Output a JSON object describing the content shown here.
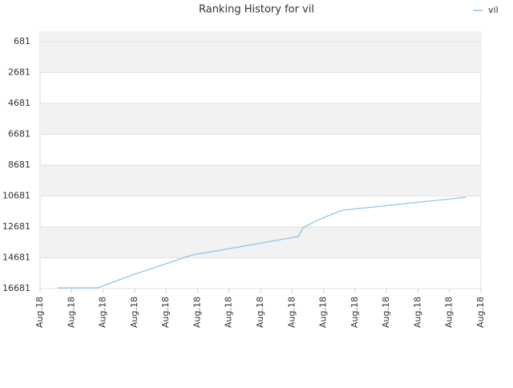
{
  "chart_data": {
    "type": "line",
    "title": "Ranking History for vil",
    "x": [
      0.56,
      1.83,
      2.93,
      4.07,
      4.84,
      5.6,
      8.2,
      8.35,
      8.91,
      9.54,
      9.67,
      13.54
    ],
    "series": [
      {
        "name": "vil",
        "color": "#90c4ec",
        "values": [
          16630,
          16630,
          15798,
          15019,
          14499,
          14240,
          13304,
          12733,
          12161,
          11642,
          11590,
          10758
        ]
      }
    ],
    "xlim": [
      0,
      14
    ],
    "xticks": [
      {
        "value": 0,
        "label": "Aug.18"
      },
      {
        "value": 1,
        "label": "Aug.18"
      },
      {
        "value": 2,
        "label": "Aug.18"
      },
      {
        "value": 3,
        "label": "Aug.18"
      },
      {
        "value": 4,
        "label": "Aug.18"
      },
      {
        "value": 5,
        "label": "Aug.18"
      },
      {
        "value": 6,
        "label": "Aug.18"
      },
      {
        "value": 7,
        "label": "Aug.18"
      },
      {
        "value": 8,
        "label": "Aug.18"
      },
      {
        "value": 9,
        "label": "Aug.18"
      },
      {
        "value": 10,
        "label": "Aug.18"
      },
      {
        "value": 11,
        "label": "Aug.18"
      },
      {
        "value": 12,
        "label": "Aug.18"
      },
      {
        "value": 13,
        "label": "Aug.18"
      },
      {
        "value": 14,
        "label": "Aug.18"
      }
    ],
    "ylim": [
      16681,
      60
    ],
    "yticks": [
      681,
      2681,
      4681,
      6681,
      8681,
      10681,
      12681,
      14681,
      16681
    ],
    "grid": true,
    "bands": true,
    "legend": "top-right"
  }
}
